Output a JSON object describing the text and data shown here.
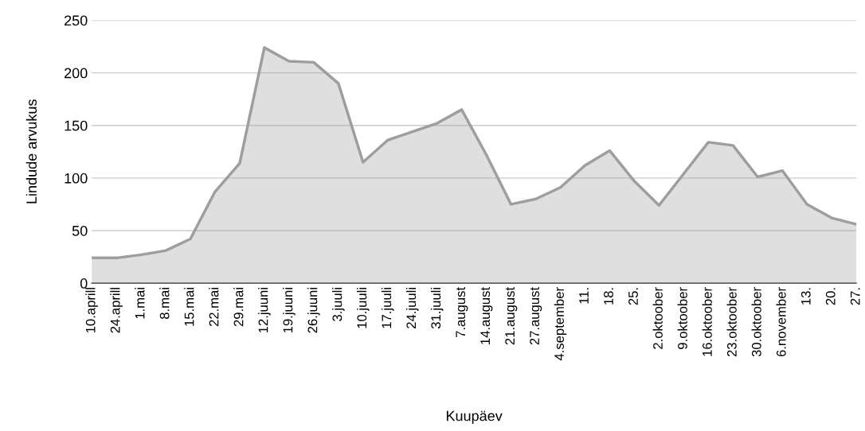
{
  "chart_data": {
    "type": "area",
    "xlabel": "Kuupäev",
    "ylabel": "Lindude arvukus",
    "categories": [
      "10.aprill",
      "24.aprill",
      "1.mai",
      "8.mai",
      "15.mai",
      "22.mai",
      "29.mai",
      "12.juuni",
      "19.juuni",
      "26.juuni",
      "3.juuli",
      "10.juuli",
      "17.juuli",
      "24.juuli",
      "31.juuli",
      "7.august",
      "14.august",
      "21.august",
      "27.august",
      "4.september",
      "11.",
      "18.",
      "25.",
      "2.oktoober",
      "9.oktoober",
      "16.oktoober",
      "23.oktoober",
      "30.oktoober",
      "6.november",
      "13.",
      "20.",
      "27."
    ],
    "series": [
      {
        "color": "#9e9e9e",
        "values": [
          24,
          24,
          27,
          31,
          42,
          87,
          114,
          224,
          211,
          210,
          190,
          115,
          136,
          144,
          152,
          165,
          122,
          75,
          80,
          91,
          112,
          126,
          97,
          74,
          104,
          134,
          131,
          101,
          107,
          75,
          62,
          56
        ]
      }
    ],
    "ylim": [
      0,
      250
    ],
    "yticks": [
      0,
      50,
      100,
      150,
      200,
      250
    ],
    "grid": "y",
    "legend": false
  }
}
